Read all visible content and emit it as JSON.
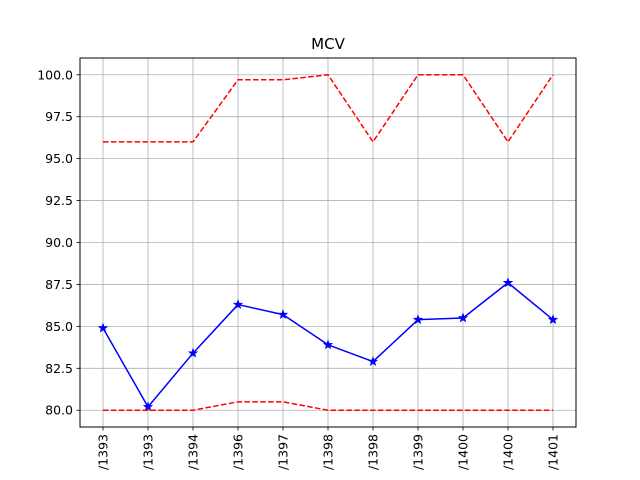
{
  "chart_data": {
    "type": "line",
    "title": "MCV",
    "xlabel": "",
    "ylabel": "",
    "categories": [
      "/1393",
      "/1393",
      "/1394",
      "/1396",
      "/1397",
      "/1398",
      "/1398",
      "/1399",
      "/1400",
      "/1400",
      "/1401"
    ],
    "ylim": [
      79.0,
      101.0
    ],
    "yticks": [
      80.0,
      82.5,
      85.0,
      87.5,
      90.0,
      92.5,
      95.0,
      97.5,
      100.0
    ],
    "ytick_labels": [
      "80.0",
      "82.5",
      "85.0",
      "87.5",
      "90.0",
      "92.5",
      "95.0",
      "97.5",
      "100.0"
    ],
    "grid": true,
    "xtick_rotation": 90,
    "series": [
      {
        "style": "solid",
        "marker": "star",
        "color": "#0000ff",
        "values": [
          84.9,
          80.2,
          83.4,
          86.3,
          85.7,
          83.9,
          82.9,
          85.4,
          85.5,
          87.6,
          85.4
        ]
      },
      {
        "style": "dashed",
        "marker": "none",
        "color": "#ff0000",
        "values": [
          96.0,
          96.0,
          96.0,
          99.7,
          99.7,
          100.0,
          96.0,
          100.0,
          100.0,
          96.0,
          100.0
        ]
      },
      {
        "style": "dashed",
        "marker": "none",
        "color": "#ff0000",
        "values": [
          80.0,
          80.0,
          80.0,
          80.5,
          80.5,
          80.0,
          80.0,
          80.0,
          80.0,
          80.0,
          80.0
        ]
      }
    ]
  }
}
